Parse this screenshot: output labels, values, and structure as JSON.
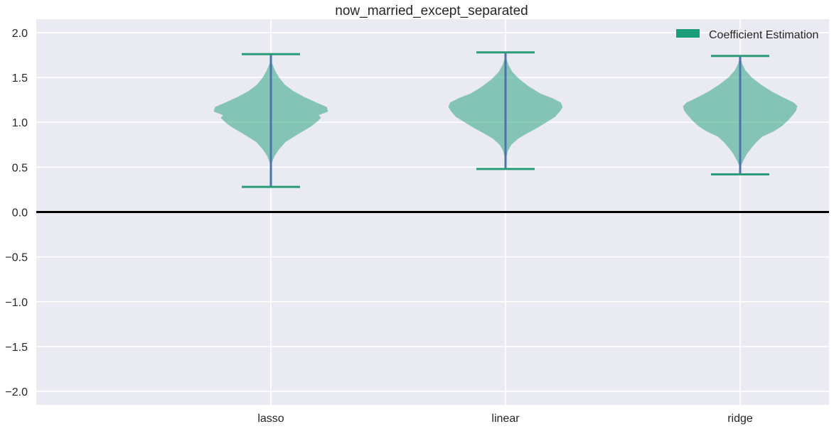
{
  "chart_data": {
    "type": "violin",
    "title": "now_married_except_separated",
    "xlabel": "",
    "ylabel": "",
    "categories": [
      "lasso",
      "linear",
      "ridge"
    ],
    "ylim": [
      -2.15,
      2.15
    ],
    "yticks": [
      -2.0,
      -1.5,
      -1.0,
      -0.5,
      0.0,
      0.5,
      1.0,
      1.5,
      2.0
    ],
    "ytick_labels": [
      "−2.0",
      "−1.5",
      "−1.0",
      "−0.5",
      "0.0",
      "0.5",
      "1.0",
      "1.5",
      "2.0"
    ],
    "grid": true,
    "reference_line_y": 0.0,
    "legend": {
      "placement": "top-right",
      "entries": [
        "Coefficient Estimation"
      ]
    },
    "colors": {
      "background": "#eaeaf2",
      "grid": "#ffffff",
      "violin_fill": "#1b9e77",
      "violin_opacity": 0.5,
      "extrema_caps": "#2a9d78",
      "center_line": "#4c72b0",
      "zero_line": "#000000",
      "legend_patch": "#1b9e77"
    },
    "series": [
      {
        "name": "Coefficient Estimation",
        "violins": [
          {
            "category": "lasso",
            "min": 0.28,
            "max": 1.76,
            "profile": [
              [
                0.28,
                0.0
              ],
              [
                0.45,
                0.005
              ],
              [
                0.55,
                0.02
              ],
              [
                0.62,
                0.06
              ],
              [
                0.7,
                0.14
              ],
              [
                0.78,
                0.25
              ],
              [
                0.85,
                0.42
              ],
              [
                0.9,
                0.55
              ],
              [
                0.95,
                0.68
              ],
              [
                1.0,
                0.78
              ],
              [
                1.05,
                0.86
              ],
              [
                1.08,
                0.82
              ],
              [
                1.12,
                0.98
              ],
              [
                1.17,
                0.96
              ],
              [
                1.22,
                0.78
              ],
              [
                1.28,
                0.58
              ],
              [
                1.35,
                0.38
              ],
              [
                1.42,
                0.24
              ],
              [
                1.5,
                0.14
              ],
              [
                1.58,
                0.07
              ],
              [
                1.66,
                0.02
              ],
              [
                1.76,
                0.0
              ]
            ]
          },
          {
            "category": "linear",
            "min": 0.48,
            "max": 1.78,
            "profile": [
              [
                0.48,
                0.0
              ],
              [
                0.6,
                0.01
              ],
              [
                0.68,
                0.04
              ],
              [
                0.75,
                0.1
              ],
              [
                0.82,
                0.22
              ],
              [
                0.88,
                0.38
              ],
              [
                0.94,
                0.55
              ],
              [
                1.0,
                0.7
              ],
              [
                1.06,
                0.85
              ],
              [
                1.12,
                0.93
              ],
              [
                1.17,
                0.98
              ],
              [
                1.22,
                0.95
              ],
              [
                1.27,
                0.8
              ],
              [
                1.32,
                0.6
              ],
              [
                1.4,
                0.4
              ],
              [
                1.48,
                0.24
              ],
              [
                1.56,
                0.12
              ],
              [
                1.64,
                0.05
              ],
              [
                1.7,
                0.02
              ],
              [
                1.78,
                0.0
              ]
            ]
          },
          {
            "category": "ridge",
            "min": 0.42,
            "max": 1.74,
            "profile": [
              [
                0.42,
                0.0
              ],
              [
                0.52,
                0.02
              ],
              [
                0.58,
                0.06
              ],
              [
                0.65,
                0.12
              ],
              [
                0.72,
                0.2
              ],
              [
                0.78,
                0.28
              ],
              [
                0.84,
                0.38
              ],
              [
                0.9,
                0.58
              ],
              [
                0.96,
                0.72
              ],
              [
                1.02,
                0.82
              ],
              [
                1.08,
                0.9
              ],
              [
                1.13,
                0.96
              ],
              [
                1.18,
                0.98
              ],
              [
                1.22,
                0.92
              ],
              [
                1.27,
                0.76
              ],
              [
                1.34,
                0.55
              ],
              [
                1.42,
                0.36
              ],
              [
                1.5,
                0.2
              ],
              [
                1.58,
                0.09
              ],
              [
                1.66,
                0.03
              ],
              [
                1.74,
                0.0
              ]
            ]
          }
        ]
      }
    ]
  }
}
